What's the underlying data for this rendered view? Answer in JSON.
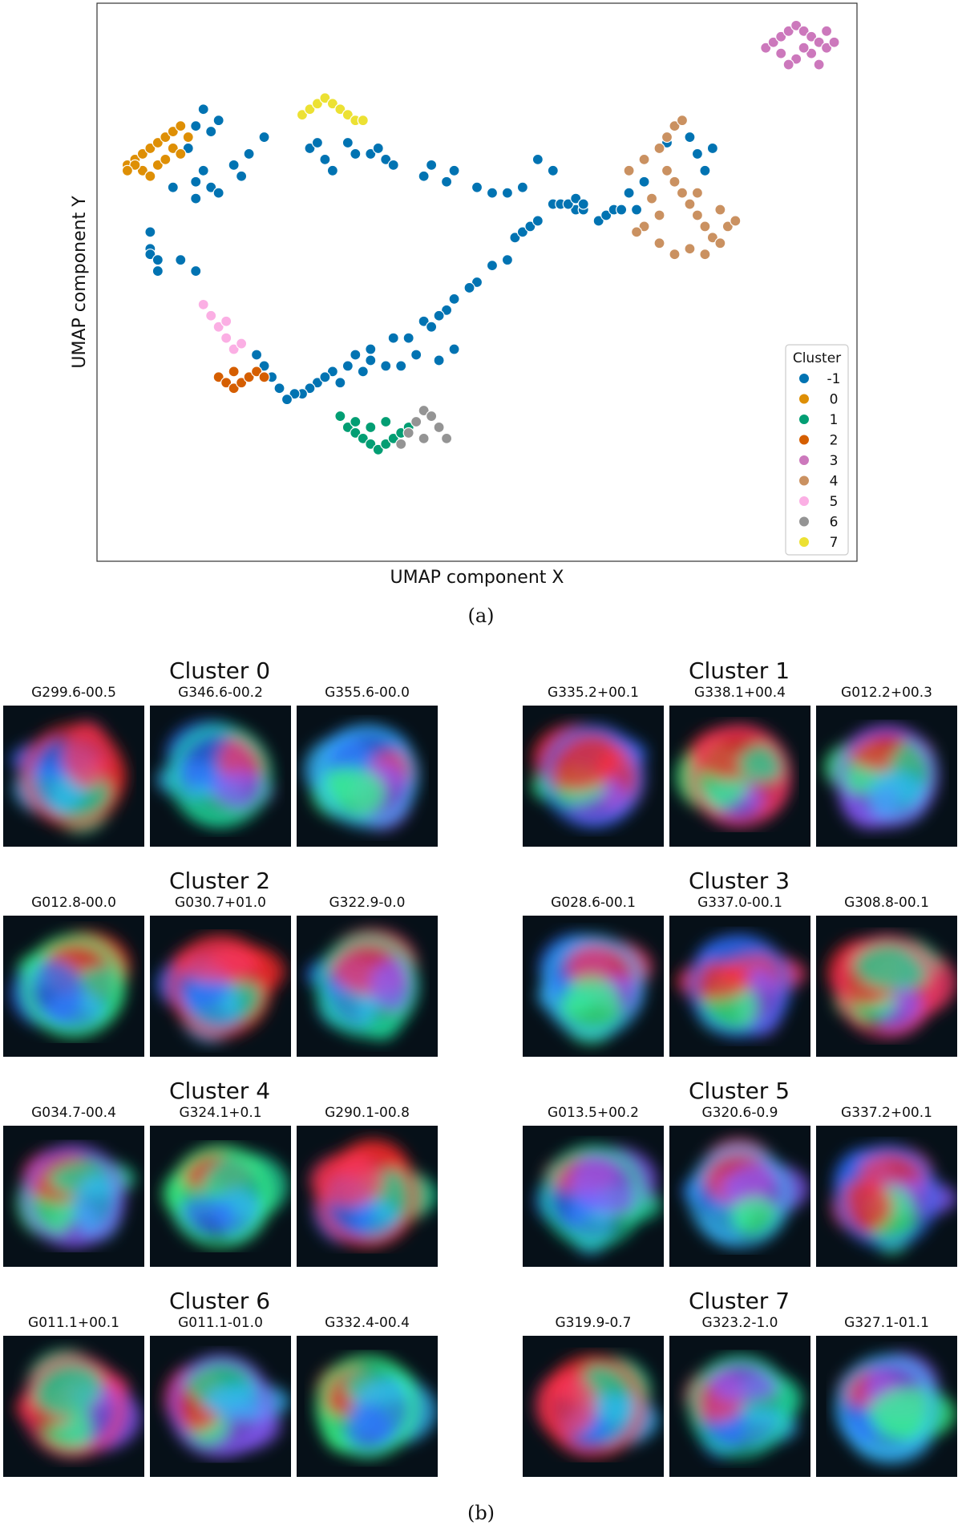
{
  "chart_data": {
    "type": "scatter",
    "xlabel": "UMAP component X",
    "ylabel": "UMAP component Y",
    "xlim": [
      0,
      100
    ],
    "ylim": [
      0,
      100
    ],
    "grid": false,
    "legend": {
      "title": "Cluster",
      "placement": "bottom-right"
    },
    "series": [
      {
        "name": "-1",
        "color": "#0173b2",
        "points": [
          [
            13,
            78
          ],
          [
            14,
            81
          ],
          [
            15,
            77
          ],
          [
            16,
            79
          ],
          [
            12,
            74
          ],
          [
            13,
            68
          ],
          [
            14,
            70
          ],
          [
            15,
            67
          ],
          [
            13,
            65
          ],
          [
            16,
            66
          ],
          [
            18,
            71
          ],
          [
            19,
            69
          ],
          [
            20,
            73
          ],
          [
            22,
            76
          ],
          [
            10,
            67
          ],
          [
            7,
            59
          ],
          [
            7,
            56
          ],
          [
            7,
            55
          ],
          [
            8,
            54
          ],
          [
            8,
            52
          ],
          [
            11,
            54
          ],
          [
            13,
            52
          ],
          [
            28,
            74
          ],
          [
            29,
            75
          ],
          [
            30,
            72
          ],
          [
            31,
            70
          ],
          [
            33,
            75
          ],
          [
            34,
            73
          ],
          [
            36,
            73
          ],
          [
            37,
            74
          ],
          [
            38,
            72
          ],
          [
            39,
            71
          ],
          [
            43,
            69
          ],
          [
            44,
            71
          ],
          [
            46,
            68
          ],
          [
            47,
            70
          ],
          [
            50,
            67
          ],
          [
            52,
            66
          ],
          [
            54,
            66
          ],
          [
            56,
            67
          ],
          [
            58,
            72
          ],
          [
            60,
            70
          ],
          [
            63,
            63
          ],
          [
            64,
            63
          ],
          [
            66,
            61
          ],
          [
            67,
            62
          ],
          [
            68,
            63
          ],
          [
            69,
            63
          ],
          [
            70,
            66
          ],
          [
            71,
            63
          ],
          [
            72,
            68
          ],
          [
            75,
            75
          ],
          [
            76,
            78
          ],
          [
            77,
            79
          ],
          [
            78,
            76
          ],
          [
            79,
            73
          ],
          [
            80,
            70
          ],
          [
            81,
            74
          ],
          [
            60,
            64
          ],
          [
            61,
            64
          ],
          [
            62,
            64
          ],
          [
            63,
            65
          ],
          [
            64,
            64
          ],
          [
            55,
            58
          ],
          [
            56,
            59
          ],
          [
            57,
            60
          ],
          [
            58,
            61
          ],
          [
            54,
            54
          ],
          [
            52,
            53
          ],
          [
            50,
            50
          ],
          [
            49,
            49
          ],
          [
            47,
            47
          ],
          [
            46,
            45
          ],
          [
            45,
            44
          ],
          [
            43,
            43
          ],
          [
            44,
            42
          ],
          [
            41,
            40
          ],
          [
            39,
            40
          ],
          [
            36,
            38
          ],
          [
            34,
            37
          ],
          [
            33,
            35
          ],
          [
            31,
            34
          ],
          [
            29,
            32
          ],
          [
            28,
            31
          ],
          [
            27,
            30
          ],
          [
            26,
            30
          ],
          [
            25,
            29
          ],
          [
            23,
            33
          ],
          [
            22,
            35
          ],
          [
            21,
            37
          ],
          [
            24,
            31
          ],
          [
            30,
            33
          ],
          [
            32,
            32
          ],
          [
            35,
            34
          ],
          [
            36,
            36
          ],
          [
            38,
            35
          ],
          [
            40,
            35
          ],
          [
            42,
            37
          ],
          [
            45,
            36
          ],
          [
            47,
            38
          ]
        ]
      },
      {
        "name": "0",
        "color": "#de8f05",
        "points": [
          [
            4,
            71
          ],
          [
            5,
            72
          ],
          [
            6,
            73
          ],
          [
            7,
            74
          ],
          [
            8,
            75
          ],
          [
            9,
            76
          ],
          [
            10,
            77
          ],
          [
            11,
            78
          ],
          [
            12,
            76
          ],
          [
            10,
            74
          ],
          [
            8,
            71
          ],
          [
            6,
            70
          ],
          [
            5,
            71
          ],
          [
            4,
            70
          ],
          [
            7,
            69
          ],
          [
            9,
            72
          ],
          [
            11,
            73
          ]
        ]
      },
      {
        "name": "1",
        "color": "#029e73",
        "points": [
          [
            32,
            26
          ],
          [
            33,
            24
          ],
          [
            34,
            23
          ],
          [
            35,
            22
          ],
          [
            36,
            21
          ],
          [
            37,
            20
          ],
          [
            38,
            21
          ],
          [
            39,
            22
          ],
          [
            40,
            23
          ],
          [
            41,
            24
          ],
          [
            38,
            25
          ],
          [
            36,
            24
          ],
          [
            34,
            25
          ]
        ]
      },
      {
        "name": "2",
        "color": "#d55e00",
        "points": [
          [
            16,
            33
          ],
          [
            17,
            32
          ],
          [
            18,
            31
          ],
          [
            19,
            32
          ],
          [
            20,
            33
          ],
          [
            21,
            34
          ],
          [
            22,
            33
          ],
          [
            18,
            34
          ]
        ]
      },
      {
        "name": "3",
        "color": "#cc78bc",
        "points": [
          [
            88,
            92
          ],
          [
            89,
            93
          ],
          [
            90,
            94
          ],
          [
            91,
            95
          ],
          [
            92,
            96
          ],
          [
            93,
            95
          ],
          [
            94,
            94
          ],
          [
            95,
            93
          ],
          [
            96,
            92
          ],
          [
            97,
            93
          ],
          [
            90,
            91
          ],
          [
            92,
            90
          ],
          [
            94,
            91
          ],
          [
            95,
            89
          ],
          [
            91,
            89
          ],
          [
            93,
            92
          ],
          [
            96,
            95
          ]
        ]
      },
      {
        "name": "4",
        "color": "#ca9161",
        "points": [
          [
            70,
            70
          ],
          [
            72,
            72
          ],
          [
            74,
            74
          ],
          [
            75,
            76
          ],
          [
            76,
            78
          ],
          [
            77,
            79
          ],
          [
            75,
            70
          ],
          [
            76,
            68
          ],
          [
            77,
            66
          ],
          [
            78,
            64
          ],
          [
            79,
            62
          ],
          [
            80,
            60
          ],
          [
            81,
            58
          ],
          [
            78,
            56
          ],
          [
            80,
            55
          ],
          [
            82,
            57
          ],
          [
            83,
            60
          ],
          [
            84,
            61
          ],
          [
            82,
            63
          ],
          [
            79,
            66
          ],
          [
            74,
            62
          ],
          [
            73,
            65
          ],
          [
            72,
            60
          ],
          [
            74,
            57
          ],
          [
            76,
            55
          ],
          [
            71,
            59
          ]
        ]
      },
      {
        "name": "5",
        "color": "#fbafe4",
        "points": [
          [
            14,
            46
          ],
          [
            15,
            44
          ],
          [
            16,
            42
          ],
          [
            17,
            40
          ],
          [
            18,
            38
          ],
          [
            19,
            39
          ],
          [
            17,
            43
          ]
        ]
      },
      {
        "name": "6",
        "color": "#949494",
        "points": [
          [
            40,
            21
          ],
          [
            41,
            23
          ],
          [
            42,
            25
          ],
          [
            43,
            27
          ],
          [
            44,
            26
          ],
          [
            45,
            24
          ],
          [
            46,
            22
          ],
          [
            43,
            22
          ]
        ]
      },
      {
        "name": "7",
        "color": "#ece133",
        "points": [
          [
            27,
            80
          ],
          [
            28,
            81
          ],
          [
            29,
            82
          ],
          [
            30,
            83
          ],
          [
            31,
            82
          ],
          [
            32,
            81
          ],
          [
            33,
            80
          ],
          [
            34,
            79
          ],
          [
            35,
            79
          ]
        ]
      }
    ]
  },
  "captions": {
    "a": "(a)",
    "b": "(b)"
  },
  "gallery": [
    {
      "title": "Cluster 0",
      "labels": [
        "G299.6-00.5",
        "G346.6-00.2",
        "G355.6-00.0"
      ]
    },
    {
      "title": "Cluster 1",
      "labels": [
        "G335.2+00.1",
        "G338.1+00.4",
        "G012.2+00.3"
      ]
    },
    {
      "title": "Cluster 2",
      "labels": [
        "G012.8-00.0",
        "G030.7+01.0",
        "G322.9-0.0"
      ]
    },
    {
      "title": "Cluster 3",
      "labels": [
        "G028.6-00.1",
        "G337.0-00.1",
        "G308.8-00.1"
      ]
    },
    {
      "title": "Cluster 4",
      "labels": [
        "G034.7-00.4",
        "G324.1+0.1",
        "G290.1-00.8"
      ]
    },
    {
      "title": "Cluster 5",
      "labels": [
        "G013.5+00.2",
        "G320.6-0.9",
        "G337.2+00.1"
      ]
    },
    {
      "title": "Cluster 6",
      "labels": [
        "G011.1+00.1",
        "G011.1-01.0",
        "G332.4-00.4"
      ]
    },
    {
      "title": "Cluster 7",
      "labels": [
        "G319.9-0.7",
        "G323.2-1.0",
        "G327.1-01.1"
      ]
    }
  ]
}
